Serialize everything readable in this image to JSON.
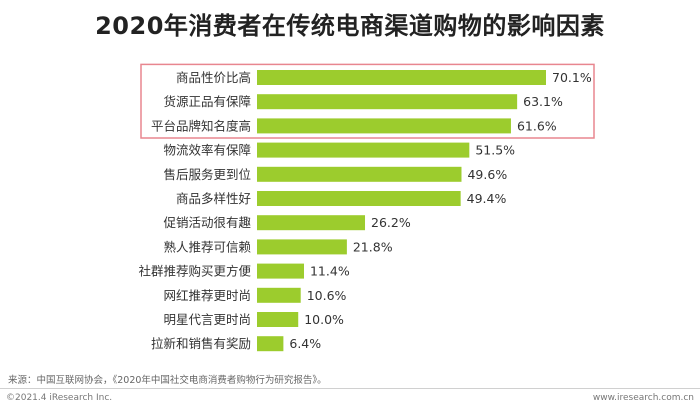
{
  "title": "2020年消费者在传统电商渠道购物的影响因素",
  "source": "来源：中国互联网协会，《2020年中国社交电商消费者购物行为研究报告》。",
  "copyright": "©2021.4 iResearch Inc.",
  "website": "www.iresearch.com.cn",
  "colors": {
    "bar": "#9ccc2d",
    "highlight_box": "#e8868f"
  },
  "highlight": {
    "categories": [
      "商品性价比高",
      "货源正品有保障",
      "平台品牌知名度高"
    ]
  },
  "chart_data": {
    "type": "bar",
    "orientation": "horizontal",
    "title": "2020年消费者在传统电商渠道购物的影响因素",
    "categories": [
      "商品性价比高",
      "货源正品有保障",
      "平台品牌知名度高",
      "物流效率有保障",
      "售后服务更到位",
      "商品多样性好",
      "促销活动很有趣",
      "熟人推荐可信赖",
      "社群推荐购买更方便",
      "网红推荐更时尚",
      "明星代言更时尚",
      "拉新和销售有奖励"
    ],
    "values": [
      70.1,
      63.1,
      61.6,
      51.5,
      49.6,
      49.4,
      26.2,
      21.8,
      11.4,
      10.6,
      10.0,
      6.4
    ],
    "value_labels": [
      "70.1%",
      "63.1%",
      "61.6%",
      "51.5%",
      "49.6%",
      "49.4%",
      "26.2%",
      "21.8%",
      "11.4%",
      "10.6%",
      "10.0%",
      "6.4%"
    ],
    "unit": "%",
    "xlim": [
      0,
      70.1
    ],
    "grid": false,
    "legend": "none"
  }
}
